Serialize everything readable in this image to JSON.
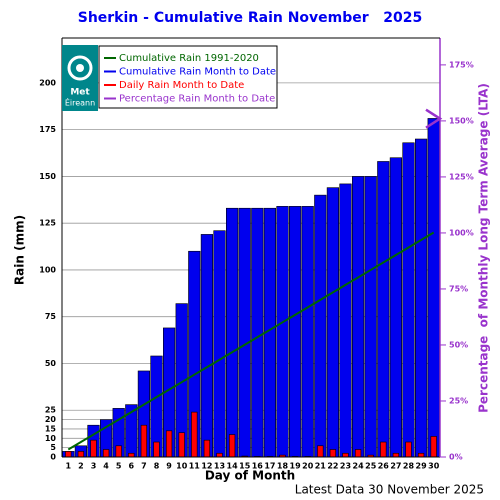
{
  "chart_data": {
    "type": "bar",
    "title": "Sherkin - Cumulative Rain November   2025",
    "xlabel": "Day of Month",
    "ylabel": "Rain (mm)",
    "y2label": "Percentage  of Monthly Long Term Average (LTA)",
    "footer": "Latest Data 30 November 2025",
    "logo": [
      "Met",
      "Éireann"
    ],
    "categories": [
      "1",
      "2",
      "3",
      "4",
      "5",
      "6",
      "7",
      "8",
      "9",
      "10",
      "11",
      "12",
      "13",
      "14",
      "15",
      "16",
      "17",
      "18",
      "19",
      "20",
      "21",
      "22",
      "23",
      "24",
      "25",
      "26",
      "27",
      "28",
      "29",
      "30"
    ],
    "ylim": [
      0,
      224
    ],
    "yticks": [
      0,
      5,
      10,
      15,
      20,
      25,
      50,
      75,
      100,
      125,
      150,
      175,
      200
    ],
    "y2lim": [
      0,
      187
    ],
    "y2ticks": [
      {
        "value": 0,
        "label": "0%"
      },
      {
        "value": 25,
        "label": "25%"
      },
      {
        "value": 50,
        "label": "50%"
      },
      {
        "value": 75,
        "label": "75%"
      },
      {
        "value": 100,
        "label": "100%"
      },
      {
        "value": 125,
        "label": "125%"
      },
      {
        "value": 150,
        "label": "150%"
      },
      {
        "value": 175,
        "label": "175%"
      }
    ],
    "grid": true,
    "series": [
      {
        "name": "Cumulative Rain 1991-2020",
        "type": "line",
        "color": "#006600",
        "values": [
          4,
          8,
          12,
          16,
          20,
          24,
          28,
          32,
          36,
          40,
          44,
          48,
          52,
          56,
          60,
          64,
          68,
          72,
          76,
          80,
          84,
          88,
          92,
          96,
          100,
          104,
          108,
          112,
          116,
          120
        ]
      },
      {
        "name": "Cumulative Rain Month to Date",
        "type": "bar",
        "color": "#0000ee",
        "values": [
          3,
          6,
          17,
          20,
          26,
          28,
          46,
          54,
          69,
          82,
          110,
          119,
          121,
          133,
          133,
          133,
          133,
          134,
          134,
          134,
          140,
          144,
          146,
          150,
          150,
          158,
          160,
          168,
          170,
          181
        ]
      },
      {
        "name": "Daily Rain Month to Date",
        "type": "bar",
        "color": "#ff0000",
        "values": [
          3,
          3,
          9,
          4,
          6,
          2,
          17,
          8,
          14,
          13,
          24,
          9,
          2,
          12,
          0.5,
          0.3,
          0.3,
          1,
          0.3,
          0.3,
          6,
          4,
          2,
          4,
          1,
          8,
          2,
          8,
          2,
          11
        ]
      },
      {
        "name": "Percentage Rain Month to Date",
        "type": "marker",
        "axis": "y2",
        "color": "#9933cc",
        "values": [
          null,
          null,
          null,
          null,
          null,
          null,
          null,
          null,
          null,
          null,
          null,
          null,
          null,
          null,
          null,
          null,
          null,
          null,
          null,
          null,
          null,
          null,
          null,
          null,
          null,
          null,
          null,
          null,
          null,
          151
        ]
      }
    ]
  }
}
